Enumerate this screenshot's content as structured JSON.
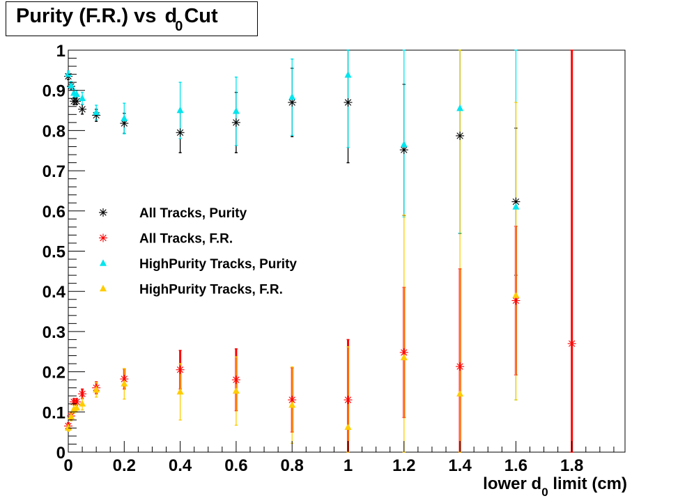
{
  "chart_data": {
    "type": "scatter",
    "title": {
      "prefix": "Purity (F.R.) vs ",
      "sym": "d",
      "sub": "0",
      "suffix": "Cut"
    },
    "xlabel": {
      "prefix": "lower d",
      "sub": "0",
      "suffix": " limit (cm)"
    },
    "ylabel": "",
    "xlim": [
      0,
      1.99
    ],
    "ylim": [
      0,
      1
    ],
    "x_ticks": [
      0,
      0.2,
      0.4,
      0.6,
      0.8,
      1,
      1.2,
      1.4,
      1.6,
      1.8
    ],
    "x_tick_labels": [
      "0",
      "0.2",
      "0.4",
      "0.6",
      "0.8",
      "1",
      "1.2",
      "1.4",
      "1.6",
      "1.8"
    ],
    "y_ticks": [
      0,
      0.1,
      0.2,
      0.3,
      0.4,
      0.5,
      0.6,
      0.7,
      0.8,
      0.9,
      1
    ],
    "y_tick_labels": [
      "0",
      "0.1",
      "0.2",
      "0.3",
      "0.4",
      "0.5",
      "0.6",
      "0.7",
      "0.8",
      "0.9",
      "1"
    ],
    "grid": false,
    "legend_position": "center-left",
    "series": [
      {
        "name": "All Tracks, Purity",
        "marker": "star",
        "color": "#000000",
        "points": [
          {
            "x": 0,
            "y": 0.935,
            "err": 0.008
          },
          {
            "x": 0.01,
            "y": 0.91,
            "err": 0.008
          },
          {
            "x": 0.02,
            "y": 0.873,
            "err": 0.008
          },
          {
            "x": 0.03,
            "y": 0.873,
            "err": 0.008
          },
          {
            "x": 0.05,
            "y": 0.853,
            "err": 0.012
          },
          {
            "x": 0.1,
            "y": 0.838,
            "err": 0.015
          },
          {
            "x": 0.2,
            "y": 0.818,
            "err": 0.025
          },
          {
            "x": 0.4,
            "y": 0.795,
            "err": 0.05
          },
          {
            "x": 0.6,
            "y": 0.82,
            "err": 0.075
          },
          {
            "x": 0.8,
            "y": 0.87,
            "err": 0.085
          },
          {
            "x": 1.0,
            "y": 0.87,
            "err": 0.15
          },
          {
            "x": 1.2,
            "y": 0.752,
            "err": 0.163
          },
          {
            "x": 1.4,
            "y": 0.787,
            "err": 0.243
          },
          {
            "x": 1.6,
            "y": 0.623,
            "err": 0.183
          }
        ]
      },
      {
        "name": "All Tracks, F.R.",
        "marker": "star",
        "color": "#ff0000",
        "points": [
          {
            "x": 0,
            "y": 0.065,
            "err": 0.008
          },
          {
            "x": 0.01,
            "y": 0.09,
            "err": 0.008
          },
          {
            "x": 0.02,
            "y": 0.125,
            "err": 0.008
          },
          {
            "x": 0.03,
            "y": 0.125,
            "err": 0.008
          },
          {
            "x": 0.05,
            "y": 0.145,
            "err": 0.012
          },
          {
            "x": 0.1,
            "y": 0.16,
            "err": 0.015
          },
          {
            "x": 0.2,
            "y": 0.182,
            "err": 0.025
          },
          {
            "x": 0.4,
            "y": 0.205,
            "err": 0.048
          },
          {
            "x": 0.6,
            "y": 0.18,
            "err": 0.077
          },
          {
            "x": 0.8,
            "y": 0.13,
            "err": 0.08
          },
          {
            "x": 1.0,
            "y": 0.13,
            "err": 0.15
          },
          {
            "x": 1.2,
            "y": 0.248,
            "err": 0.162
          },
          {
            "x": 1.4,
            "y": 0.213,
            "err": 0.243
          },
          {
            "x": 1.6,
            "y": 0.377,
            "err": 0.185
          },
          {
            "x": 1.8,
            "y": 0.27,
            "errlow": 0.27,
            "errhigh": 0.73
          }
        ]
      },
      {
        "name": "HighPurity Tracks, Purity",
        "marker": "triangle",
        "color": "#00e5ee",
        "points": [
          {
            "x": 0,
            "y": 0.94,
            "err": 0.008
          },
          {
            "x": 0.01,
            "y": 0.912,
            "err": 0.01
          },
          {
            "x": 0.02,
            "y": 0.893,
            "err": 0.01
          },
          {
            "x": 0.03,
            "y": 0.89,
            "err": 0.01
          },
          {
            "x": 0.05,
            "y": 0.88,
            "err": 0.015
          },
          {
            "x": 0.1,
            "y": 0.845,
            "err": 0.018
          },
          {
            "x": 0.2,
            "y": 0.83,
            "err": 0.038
          },
          {
            "x": 0.4,
            "y": 0.85,
            "err": 0.07
          },
          {
            "x": 0.6,
            "y": 0.848,
            "err": 0.085
          },
          {
            "x": 0.8,
            "y": 0.883,
            "err": 0.095
          },
          {
            "x": 1.0,
            "y": 0.938,
            "errlow": 0.18,
            "errhigh": 0.062
          },
          {
            "x": 1.2,
            "y": 0.765,
            "errlow": 0.18,
            "errhigh": 0.235
          },
          {
            "x": 1.4,
            "y": 0.855,
            "errlow": 0.31,
            "errhigh": 0.145
          },
          {
            "x": 1.6,
            "y": 0.61,
            "errlow": 0.48,
            "errhigh": 0.39
          }
        ]
      },
      {
        "name": "HighPurity Tracks, F.R.",
        "marker": "triangle",
        "color": "#ffcc00",
        "points": [
          {
            "x": 0,
            "y": 0.06,
            "err": 0.008
          },
          {
            "x": 0.01,
            "y": 0.088,
            "err": 0.01
          },
          {
            "x": 0.02,
            "y": 0.107,
            "err": 0.01
          },
          {
            "x": 0.03,
            "y": 0.11,
            "err": 0.01
          },
          {
            "x": 0.05,
            "y": 0.12,
            "err": 0.015
          },
          {
            "x": 0.1,
            "y": 0.155,
            "err": 0.018
          },
          {
            "x": 0.2,
            "y": 0.17,
            "err": 0.038
          },
          {
            "x": 0.4,
            "y": 0.15,
            "err": 0.07
          },
          {
            "x": 0.6,
            "y": 0.152,
            "err": 0.085
          },
          {
            "x": 0.8,
            "y": 0.117,
            "err": 0.095
          },
          {
            "x": 1.0,
            "y": 0.062,
            "errlow": 0.062,
            "errhigh": 0.2
          },
          {
            "x": 1.2,
            "y": 0.235,
            "errlow": 0.235,
            "errhigh": 0.355
          },
          {
            "x": 1.4,
            "y": 0.145,
            "errlow": 0.145,
            "errhigh": 0.855
          },
          {
            "x": 1.6,
            "y": 0.39,
            "errlow": 0.26,
            "errhigh": 0.48
          }
        ]
      }
    ]
  }
}
